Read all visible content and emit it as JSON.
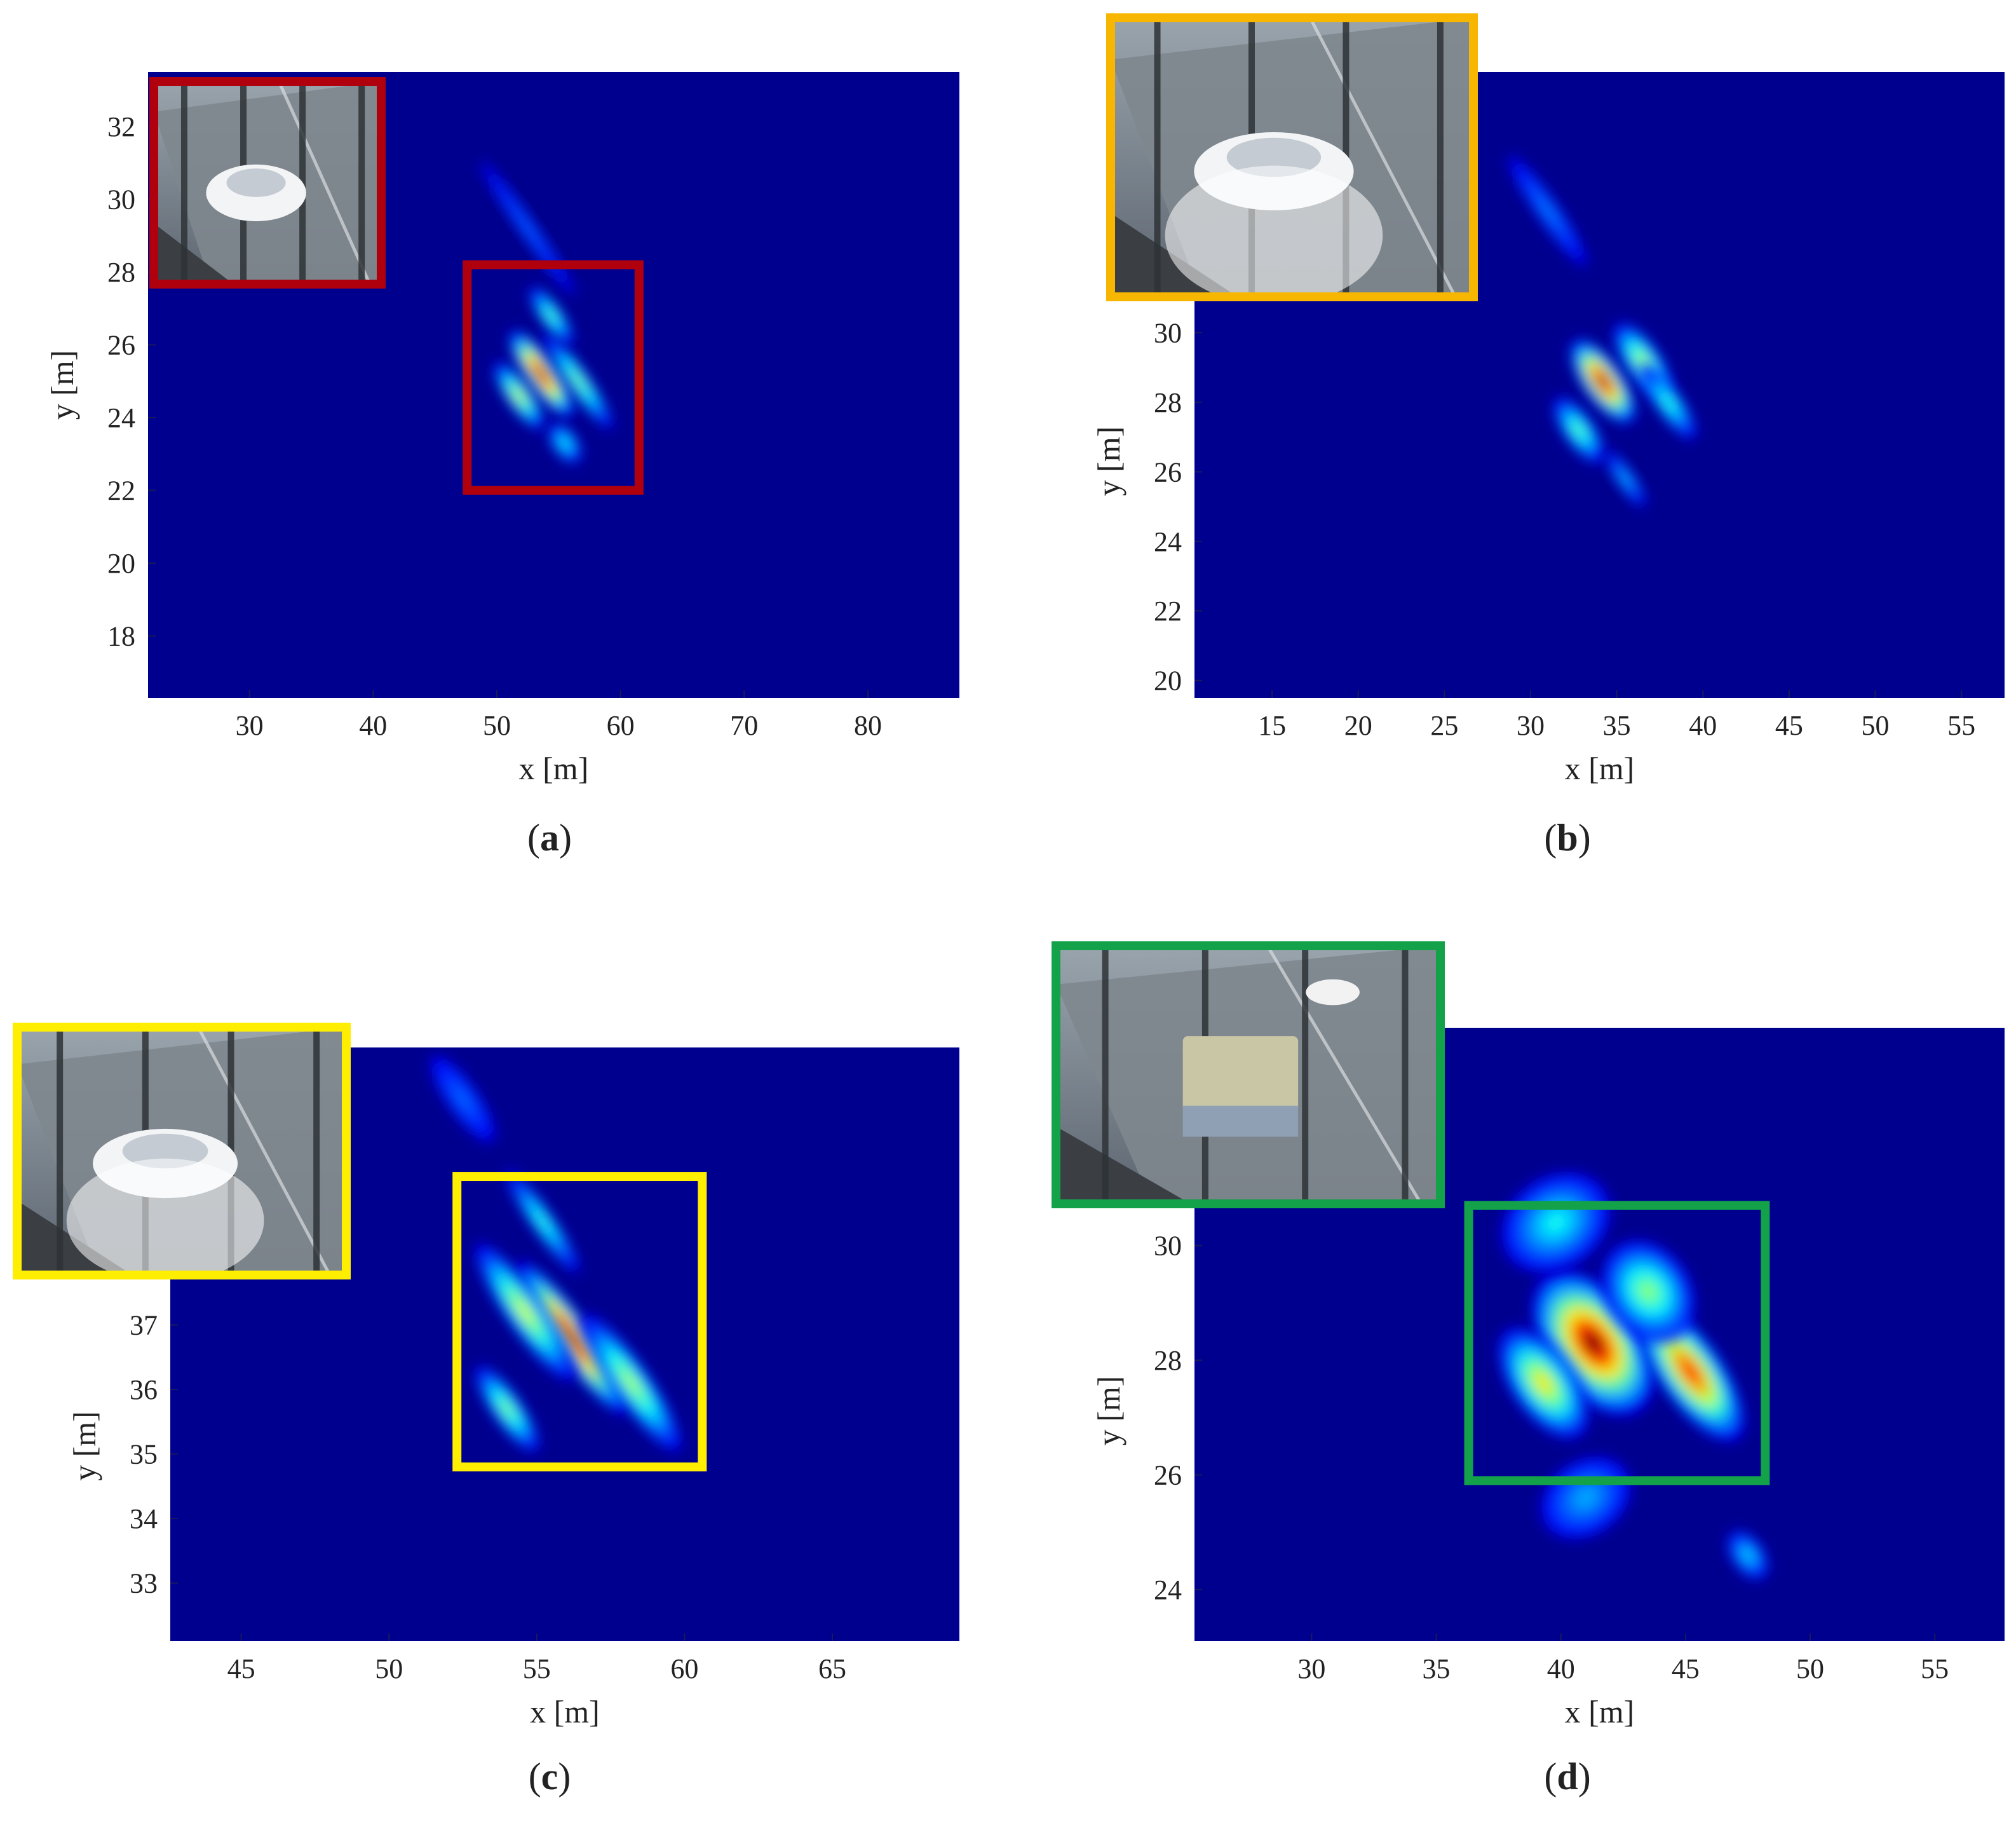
{
  "figure": {
    "panels": [
      {
        "id": "a",
        "caption_letter": "a",
        "box_color": "#b0000e",
        "chart_data": {
          "type": "heatmap",
          "xlabel": "x [m]",
          "ylabel": "y [m]",
          "xlim": [
            21.8,
            87.4
          ],
          "ylim": [
            16.3,
            33.5
          ],
          "xticks": [
            30,
            40,
            50,
            60,
            70,
            80
          ],
          "yticks": [
            18,
            20,
            22,
            24,
            26,
            28,
            30,
            32
          ],
          "background_color": "#00008f",
          "colormap": "jet",
          "hotspots": [
            {
              "x": 53.6,
              "y": 25.2,
              "intensity": 1.0,
              "sx": 1.0,
              "sy": 0.9
            },
            {
              "x": 51.8,
              "y": 24.6,
              "intensity": 0.55,
              "sx": 0.8,
              "sy": 0.7
            },
            {
              "x": 56.6,
              "y": 25.0,
              "intensity": 0.45,
              "sx": 0.7,
              "sy": 1.0
            },
            {
              "x": 54.4,
              "y": 26.8,
              "intensity": 0.4,
              "sx": 0.7,
              "sy": 0.6
            },
            {
              "x": 55.5,
              "y": 23.3,
              "intensity": 0.3,
              "sx": 0.8,
              "sy": 0.4
            },
            {
              "x": 52.5,
              "y": 29.2,
              "intensity": 0.12,
              "sx": 0.5,
              "sy": 1.4
            }
          ],
          "target_box": {
            "x0": 47.6,
            "x1": 61.5,
            "y0": 22.0,
            "y1": 28.2
          }
        }
      },
      {
        "id": "b",
        "caption_letter": "b",
        "box_color": "#f7b600",
        "chart_data": {
          "type": "heatmap",
          "xlabel": "x [m]",
          "ylabel": "y [m]",
          "xlim": [
            10.5,
            57.5
          ],
          "ylim": [
            19.5,
            37.5
          ],
          "xticks": [
            15,
            20,
            25,
            30,
            35,
            40,
            45,
            50,
            55
          ],
          "yticks": [
            20,
            22,
            24,
            26,
            28,
            30
          ],
          "background_color": "#00008f",
          "colormap": "jet",
          "hotspots": [
            {
              "x": 34.2,
              "y": 28.6,
              "intensity": 1.0,
              "sx": 0.9,
              "sy": 0.9
            },
            {
              "x": 36.5,
              "y": 29.2,
              "intensity": 0.5,
              "sx": 0.8,
              "sy": 0.8
            },
            {
              "x": 32.8,
              "y": 27.2,
              "intensity": 0.4,
              "sx": 0.7,
              "sy": 0.7
            },
            {
              "x": 38.0,
              "y": 28.0,
              "intensity": 0.35,
              "sx": 0.6,
              "sy": 0.8
            },
            {
              "x": 35.5,
              "y": 25.8,
              "intensity": 0.22,
              "sx": 0.4,
              "sy": 0.6
            },
            {
              "x": 31.0,
              "y": 33.5,
              "intensity": 0.15,
              "sx": 0.5,
              "sy": 1.2
            }
          ]
        }
      },
      {
        "id": "c",
        "caption_letter": "c",
        "box_color": "#ffee00",
        "chart_data": {
          "type": "heatmap",
          "xlabel": "x [m]",
          "ylabel": "y [m]",
          "xlim": [
            42.6,
            69.3
          ],
          "ylim": [
            32.1,
            41.3
          ],
          "xticks": [
            45,
            50,
            55,
            60,
            65
          ],
          "yticks": [
            33,
            34,
            35,
            36,
            37
          ],
          "background_color": "#00008f",
          "colormap": "jet",
          "hotspots": [
            {
              "x": 56.2,
              "y": 36.8,
              "intensity": 1.0,
              "sx": 0.5,
              "sy": 0.9
            },
            {
              "x": 54.6,
              "y": 37.2,
              "intensity": 0.55,
              "sx": 0.5,
              "sy": 0.8
            },
            {
              "x": 58.2,
              "y": 36.1,
              "intensity": 0.5,
              "sx": 0.5,
              "sy": 0.8
            },
            {
              "x": 54.0,
              "y": 35.7,
              "intensity": 0.45,
              "sx": 0.4,
              "sy": 0.5
            },
            {
              "x": 55.2,
              "y": 38.6,
              "intensity": 0.35,
              "sx": 0.3,
              "sy": 0.6
            },
            {
              "x": 52.5,
              "y": 40.5,
              "intensity": 0.12,
              "sx": 0.4,
              "sy": 0.5
            }
          ],
          "target_box": {
            "x0": 52.3,
            "x1": 60.6,
            "y0": 34.8,
            "y1": 39.3
          }
        }
      },
      {
        "id": "d",
        "caption_letter": "d",
        "box_color": "#13a24a",
        "chart_data": {
          "type": "heatmap",
          "xlabel": "x [m]",
          "ylabel": "y [m]",
          "xlim": [
            25.3,
            57.8
          ],
          "ylim": [
            23.1,
            33.8
          ],
          "xticks": [
            30,
            35,
            40,
            45,
            50,
            55
          ],
          "yticks": [
            24,
            26,
            28,
            30
          ],
          "background_color": "#00008f",
          "colormap": "jet",
          "hotspots": [
            {
              "x": 41.3,
              "y": 28.3,
              "intensity": 1.0,
              "sx": 1.5,
              "sy": 0.9
            },
            {
              "x": 45.2,
              "y": 27.8,
              "intensity": 0.85,
              "sx": 1.0,
              "sy": 0.9
            },
            {
              "x": 39.3,
              "y": 27.6,
              "intensity": 0.6,
              "sx": 1.0,
              "sy": 0.7
            },
            {
              "x": 43.5,
              "y": 29.2,
              "intensity": 0.45,
              "sx": 1.3,
              "sy": 0.6
            },
            {
              "x": 39.8,
              "y": 30.4,
              "intensity": 0.3,
              "sx": 1.8,
              "sy": 0.5
            },
            {
              "x": 47.5,
              "y": 24.6,
              "intensity": 0.25,
              "sx": 0.5,
              "sy": 0.3
            },
            {
              "x": 41.0,
              "y": 25.6,
              "intensity": 0.2,
              "sx": 1.5,
              "sy": 0.4
            }
          ],
          "target_box": {
            "x0": 36.3,
            "x1": 48.2,
            "y0": 25.9,
            "y1": 30.7
          }
        }
      }
    ]
  }
}
